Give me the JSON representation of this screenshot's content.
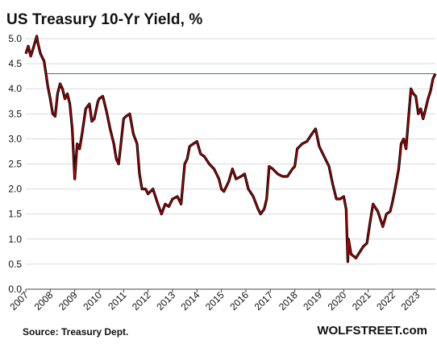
{
  "chart_data": {
    "type": "line",
    "title": "US Treasury 10-Yr Yield, %",
    "xlabel": "",
    "ylabel": "",
    "xlim": [
      2007.0,
      2023.75
    ],
    "ylim": [
      0,
      5
    ],
    "y_ticks": [
      "0.0",
      "0.5",
      "1.0",
      "1.5",
      "2.0",
      "2.5",
      "3.0",
      "3.5",
      "4.0",
      "4.5",
      "5.0"
    ],
    "x_ticks": [
      "2007",
      "2008",
      "2009",
      "2010",
      "2011",
      "2012",
      "2013",
      "2014",
      "2015",
      "2016",
      "2017",
      "2018",
      "2019",
      "2020",
      "2021",
      "2022",
      "2023"
    ],
    "grid": "horizontal",
    "reference_line": {
      "value": 4.3,
      "color": "#2e8b57"
    },
    "series": [
      {
        "line_color": "#d40000",
        "shadow_color": "#000000",
        "x": [
          2007.0,
          2007.1,
          2007.2,
          2007.3,
          2007.45,
          2007.5,
          2007.6,
          2007.75,
          2007.9,
          2008.0,
          2008.1,
          2008.2,
          2008.3,
          2008.4,
          2008.5,
          2008.6,
          2008.7,
          2008.8,
          2008.9,
          2009.0,
          2009.1,
          2009.2,
          2009.3,
          2009.45,
          2009.6,
          2009.7,
          2009.8,
          2009.95,
          2010.0,
          2010.15,
          2010.3,
          2010.45,
          2010.6,
          2010.7,
          2010.8,
          2010.9,
          2011.0,
          2011.1,
          2011.25,
          2011.4,
          2011.55,
          2011.65,
          2011.75,
          2011.9,
          2012.0,
          2012.2,
          2012.4,
          2012.55,
          2012.7,
          2012.85,
          2013.0,
          2013.2,
          2013.35,
          2013.5,
          2013.6,
          2013.7,
          2013.85,
          2014.0,
          2014.15,
          2014.3,
          2014.5,
          2014.7,
          2014.9,
          2015.0,
          2015.1,
          2015.3,
          2015.45,
          2015.6,
          2015.8,
          2015.95,
          2016.1,
          2016.3,
          2016.5,
          2016.6,
          2016.75,
          2016.85,
          2016.95,
          2017.1,
          2017.3,
          2017.5,
          2017.7,
          2017.9,
          2018.0,
          2018.1,
          2018.3,
          2018.5,
          2018.7,
          2018.85,
          2019.0,
          2019.2,
          2019.4,
          2019.55,
          2019.7,
          2019.85,
          2020.0,
          2020.1,
          2020.17,
          2020.2,
          2020.3,
          2020.5,
          2020.6,
          2020.8,
          2020.95,
          2021.1,
          2021.2,
          2021.4,
          2021.6,
          2021.75,
          2021.9,
          2022.0,
          2022.1,
          2022.25,
          2022.35,
          2022.45,
          2022.55,
          2022.65,
          2022.75,
          2022.85,
          2022.95,
          2023.05,
          2023.15,
          2023.25,
          2023.35,
          2023.45,
          2023.55,
          2023.65,
          2023.75
        ],
        "values": [
          4.7,
          4.85,
          4.65,
          4.8,
          5.05,
          4.9,
          4.7,
          4.55,
          4.05,
          3.8,
          3.5,
          3.45,
          3.9,
          4.1,
          4.0,
          3.8,
          3.9,
          3.7,
          3.2,
          2.2,
          2.9,
          2.8,
          3.1,
          3.6,
          3.7,
          3.35,
          3.4,
          3.75,
          3.8,
          3.85,
          3.55,
          3.2,
          2.9,
          2.6,
          2.5,
          2.95,
          3.4,
          3.45,
          3.5,
          3.1,
          2.9,
          2.3,
          2.0,
          2.0,
          1.9,
          2.0,
          1.7,
          1.5,
          1.7,
          1.65,
          1.8,
          1.85,
          1.7,
          2.5,
          2.6,
          2.85,
          2.9,
          2.95,
          2.7,
          2.65,
          2.5,
          2.4,
          2.2,
          2.0,
          1.95,
          2.15,
          2.4,
          2.2,
          2.25,
          2.3,
          2.0,
          1.85,
          1.6,
          1.5,
          1.6,
          1.8,
          2.45,
          2.4,
          2.3,
          2.25,
          2.25,
          2.4,
          2.45,
          2.8,
          2.9,
          2.95,
          3.1,
          3.2,
          2.85,
          2.65,
          2.45,
          2.1,
          1.8,
          1.8,
          1.85,
          1.6,
          0.55,
          1.0,
          0.7,
          0.62,
          0.7,
          0.85,
          0.92,
          1.4,
          1.7,
          1.55,
          1.25,
          1.5,
          1.55,
          1.75,
          2.0,
          2.4,
          2.9,
          3.0,
          2.8,
          3.4,
          4.0,
          3.9,
          3.85,
          3.5,
          3.6,
          3.4,
          3.6,
          3.8,
          3.95,
          4.2,
          4.3
        ]
      }
    ],
    "source": "Source: Treasury Dept.",
    "brand": "WOLFSTREET.com"
  }
}
